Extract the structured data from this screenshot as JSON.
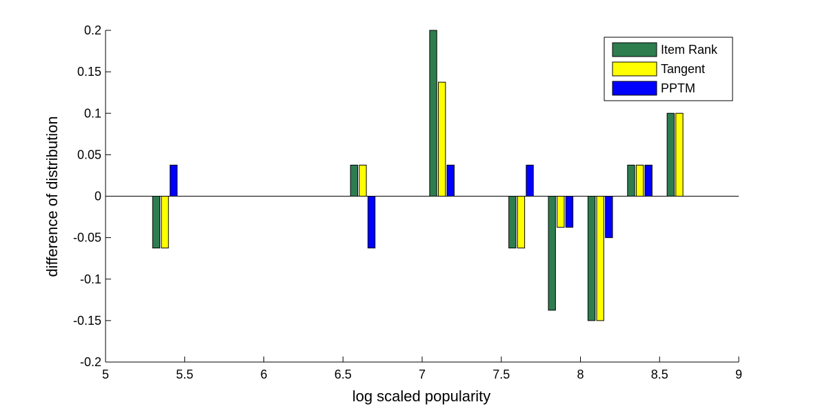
{
  "chart_data": {
    "type": "bar",
    "title": "",
    "xlabel": "log scaled popularity",
    "ylabel": "difference of distribution",
    "xlim": [
      5,
      9
    ],
    "ylim": [
      -0.2,
      0.2
    ],
    "xticks": [
      5,
      5.5,
      6,
      6.5,
      7,
      7.5,
      8,
      8.5,
      9
    ],
    "xtick_labels": [
      "5",
      "5.5",
      "6",
      "6.5",
      "7",
      "7.5",
      "8",
      "8.5",
      "9"
    ],
    "yticks": [
      -0.2,
      -0.15,
      -0.1,
      -0.05,
      0,
      0.05,
      0.1,
      0.15,
      0.2
    ],
    "ytick_labels": [
      "-0.2",
      "-0.15",
      "-0.1",
      "-0.05",
      "0",
      "0.05",
      "0.1",
      "0.15",
      "0.2"
    ],
    "grid": false,
    "legend_position": "top-right",
    "group_centers": [
      5.375,
      6.625,
      7.125,
      7.625,
      7.875,
      8.125,
      8.375,
      8.625
    ],
    "bar_offset": 0.055,
    "bar_width": 0.045,
    "series": [
      {
        "name": "Item Rank",
        "color": "#2e7d4f",
        "values": [
          -0.0625,
          0.0375,
          0.2,
          -0.0625,
          -0.1375,
          -0.15,
          0.0375,
          0.1
        ]
      },
      {
        "name": "Tangent",
        "color": "#ffff00",
        "values": [
          -0.0625,
          0.0375,
          0.1375,
          -0.0625,
          -0.0375,
          -0.15,
          0.0375,
          0.1
        ]
      },
      {
        "name": "PPTM",
        "color": "#0000ff",
        "values": [
          0.0375,
          -0.0625,
          0.0375,
          0.0375,
          -0.0375,
          -0.05,
          0.0375,
          0
        ]
      }
    ]
  }
}
